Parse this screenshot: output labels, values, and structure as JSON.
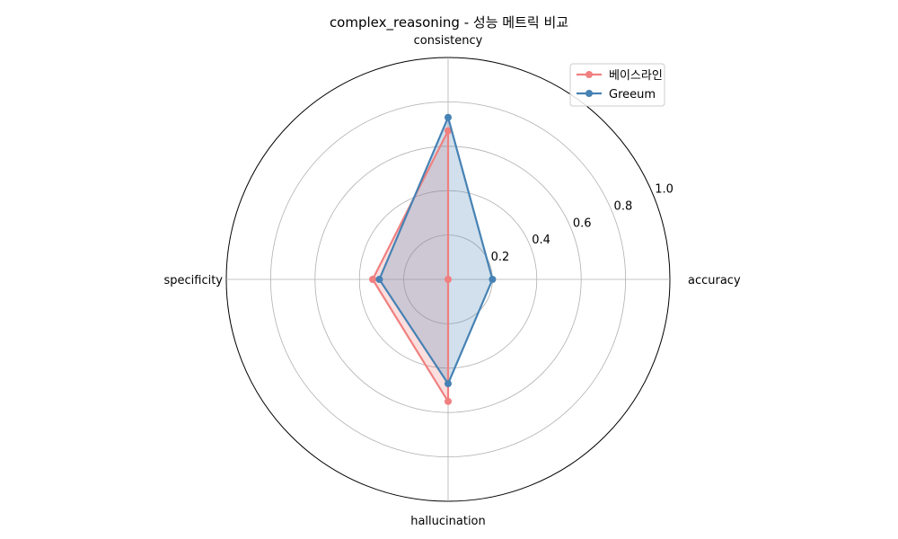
{
  "chart_data": {
    "type": "radar",
    "title": "complex_reasoning - 성능 메트릭 비교",
    "axes": [
      "accuracy",
      "consistency",
      "specificity",
      "hallucination"
    ],
    "radial_ticks": [
      "0.2",
      "0.4",
      "0.6",
      "0.8",
      "1.0"
    ],
    "rlim": [
      0,
      1.0
    ],
    "grid": true,
    "legend_position": "top-right",
    "series": [
      {
        "name": "베이스라인",
        "values": [
          0.0,
          0.67,
          0.34,
          0.55
        ],
        "color": "#f08080"
      },
      {
        "name": "Greeum",
        "values": [
          0.2,
          0.73,
          0.31,
          0.47
        ],
        "color": "#4682b4"
      }
    ]
  }
}
